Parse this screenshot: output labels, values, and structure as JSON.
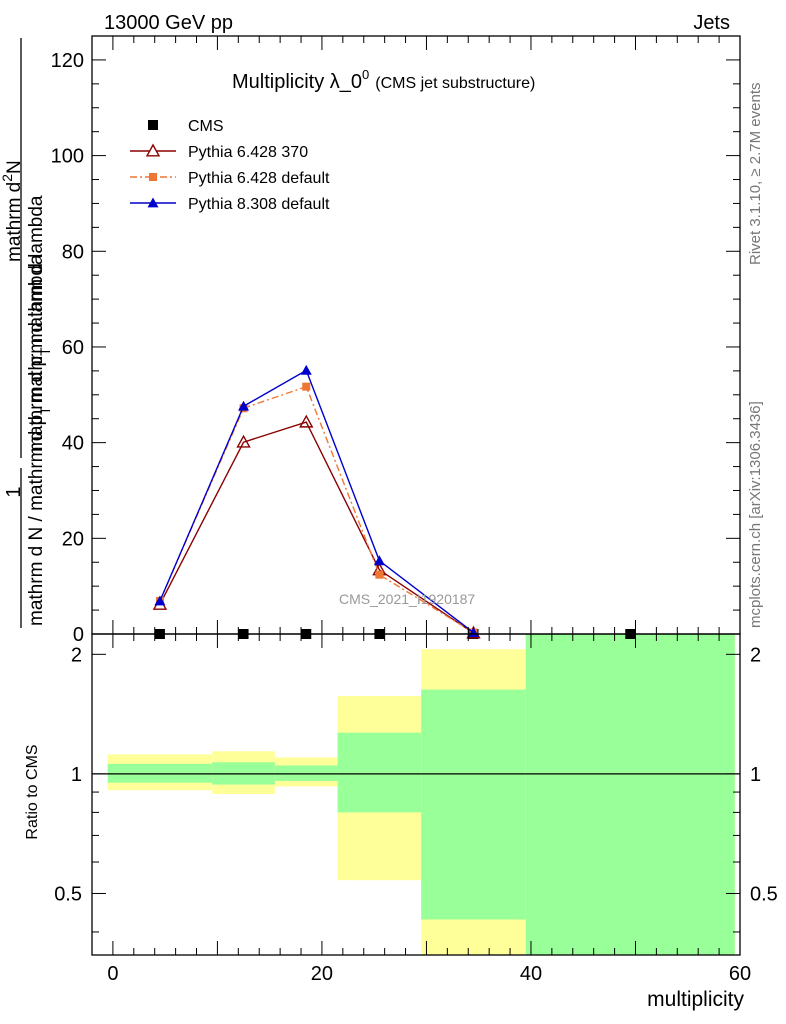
{
  "header": {
    "left": "13000 GeV pp",
    "right": "Jets"
  },
  "plot": {
    "title_main": "Multiplicity λ_0",
    "title_sup": "0",
    "title_sub": "(CMS jet substructure)",
    "watermark": "CMS_2021_I1920187",
    "side_text_top": "Rivet 3.1.10, ≥ 2.7M events",
    "side_text_bottom": "mcplots.cern.ch [arXiv:1306.3436]"
  },
  "ylabel_top": {
    "numerator_left": "1",
    "denominator_left": "mathrm d N / mathrm d p",
    "denominator_left_sub": "T",
    "denominator_right": "mathrm d lambda",
    "numerator_right": "mathrm d",
    "numerator_right_sup": "2",
    "numerator_right_end": "N",
    "denominator_right2": "mathrm d p",
    "denominator_right2_sub": "T",
    "denominator_right2_end": "mathrm d lambda"
  },
  "ylabel_ratio": "Ratio to CMS",
  "xlabel": "multiplicity",
  "chart_data": [
    {
      "type": "line",
      "title": "Multiplicity λ_0^0 (CMS jet substructure)",
      "xlabel": "multiplicity",
      "ylabel": "1 / (mathrm d N / mathrm d p_T mathrm d lambda) · mathrm d^2N / (mathrm d p_T mathrm d lambda)",
      "xlim": [
        -2,
        60
      ],
      "ylim": [
        0,
        125
      ],
      "yticks": [
        0,
        20,
        40,
        60,
        80,
        100,
        120
      ],
      "legend_position": "top-left",
      "series": [
        {
          "name": "CMS",
          "color": "#000000",
          "marker": "square",
          "x": [
            4.5,
            12.5,
            18.5,
            25.5,
            34.5,
            49.5
          ],
          "y": [
            0,
            0,
            0,
            0,
            0,
            0
          ]
        },
        {
          "name": "Pythia 6.428 370",
          "color": "#8b0000",
          "marker": "open-triangle",
          "x": [
            4.5,
            12.5,
            18.5,
            25.5,
            34.5
          ],
          "y": [
            6.2,
            40.1,
            44.3,
            13.4,
            0.2
          ]
        },
        {
          "name": "Pythia 6.428 default",
          "color": "#ee7733",
          "marker": "square-small",
          "dash": "dashdot",
          "x": [
            4.5,
            12.5,
            18.5,
            25.5,
            34.5
          ],
          "y": [
            6.9,
            47.2,
            51.7,
            12.4,
            0.3
          ]
        },
        {
          "name": "Pythia 8.308 default",
          "color": "#0000cc",
          "marker": "filled-triangle",
          "x": [
            4.5,
            12.5,
            18.5,
            25.5,
            34.5
          ],
          "y": [
            6.9,
            47.6,
            55.1,
            15.3,
            0.3
          ]
        }
      ]
    },
    {
      "type": "bar",
      "title": "Ratio to CMS",
      "xlabel": "multiplicity",
      "ylabel": "Ratio to CMS",
      "xlim": [
        -2,
        60
      ],
      "ylim": [
        0.35,
        2.25
      ],
      "scale": "log",
      "yticks": [
        0.5,
        1,
        2
      ],
      "reference_line": 1,
      "bins": [
        {
          "x0": -0.5,
          "x1": 9.5,
          "yellow": [
            0.91,
            1.12
          ],
          "green": [
            0.95,
            1.06
          ]
        },
        {
          "x0": 9.5,
          "x1": 15.5,
          "yellow": [
            0.89,
            1.14
          ],
          "green": [
            0.94,
            1.07
          ]
        },
        {
          "x0": 15.5,
          "x1": 21.5,
          "yellow": [
            0.93,
            1.1
          ],
          "green": [
            0.96,
            1.05
          ]
        },
        {
          "x0": 21.5,
          "x1": 29.5,
          "yellow": [
            0.54,
            1.57
          ],
          "green": [
            0.8,
            1.27
          ]
        },
        {
          "x0": 29.5,
          "x1": 39.5,
          "yellow": [
            0.35,
            2.06
          ],
          "green": [
            0.43,
            1.63
          ]
        },
        {
          "x0": 39.5,
          "x1": 59.5,
          "yellow": [
            0.35,
            2.25
          ],
          "green": [
            0.35,
            2.25
          ]
        }
      ],
      "band_colors": {
        "outer": "#ffff99",
        "inner": "#99ff99"
      }
    }
  ]
}
